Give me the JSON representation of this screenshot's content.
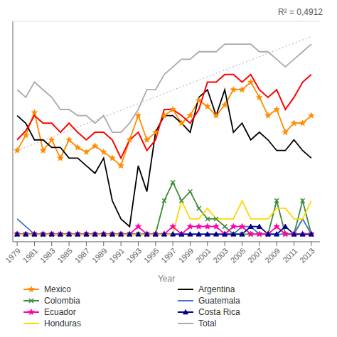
{
  "chart_data": {
    "type": "line",
    "x_label": "Year",
    "annotation": "R² = 0,4912",
    "x": [
      1979,
      1980,
      1981,
      1982,
      1983,
      1984,
      1985,
      1986,
      1987,
      1988,
      1989,
      1990,
      1991,
      1992,
      1993,
      1994,
      1995,
      1996,
      1997,
      1998,
      1999,
      2000,
      2001,
      2002,
      2003,
      2004,
      2005,
      2006,
      2007,
      2008,
      2009,
      2010,
      2011,
      2012,
      2013
    ],
    "series": [
      {
        "name": "Mexico",
        "color": "#FF8C00",
        "marker": "star",
        "values": [
          55,
          65,
          80,
          55,
          62,
          50,
          62,
          57,
          54,
          58,
          54,
          50,
          45,
          62,
          78,
          62,
          67,
          78,
          82,
          73,
          78,
          88,
          84,
          78,
          85,
          95,
          95,
          100,
          90,
          78,
          82,
          67,
          73,
          73,
          78
        ]
      },
      {
        "name": "Argentina",
        "color": "#000000",
        "values": [
          78,
          73,
          62,
          62,
          57,
          57,
          50,
          50,
          45,
          40,
          50,
          22,
          10,
          5,
          45,
          28,
          67,
          78,
          78,
          73,
          67,
          90,
          95,
          78,
          95,
          67,
          73,
          62,
          67,
          62,
          55,
          55,
          62,
          55,
          50
        ]
      },
      {
        "name": "Colombia",
        "color": "#3A8C3A",
        "marker": "x",
        "values": [
          0,
          0,
          0,
          0,
          0,
          0,
          0,
          0,
          0,
          0,
          0,
          0,
          0,
          0,
          0,
          0,
          0,
          22,
          34,
          22,
          28,
          17,
          10,
          10,
          5,
          0,
          0,
          0,
          0,
          0,
          22,
          0,
          0,
          22,
          0
        ]
      },
      {
        "name": "Guatemala",
        "color": "#4472C4",
        "values": [
          10,
          5,
          0,
          0,
          0,
          0,
          0,
          0,
          0,
          0,
          0,
          0,
          0,
          0,
          0,
          0,
          0,
          0,
          0,
          0,
          0,
          0,
          0,
          0,
          0,
          0,
          5,
          5,
          0,
          0,
          0,
          0,
          0,
          10,
          0
        ]
      },
      {
        "name": "Ecuador",
        "color": "#FF00AA",
        "marker": "star",
        "values": [
          0,
          0,
          0,
          0,
          0,
          0,
          0,
          0,
          0,
          0,
          0,
          0,
          0,
          0,
          5,
          0,
          0,
          0,
          5,
          0,
          5,
          5,
          5,
          5,
          0,
          5,
          5,
          0,
          0,
          0,
          5,
          0,
          0,
          0,
          0
        ]
      },
      {
        "name": "Costa Rica",
        "color": "#00008B",
        "marker": "triangle",
        "values": [
          0,
          0,
          0,
          0,
          0,
          0,
          0,
          0,
          0,
          0,
          0,
          0,
          0,
          0,
          0,
          0,
          0,
          0,
          0,
          0,
          0,
          0,
          0,
          0,
          0,
          0,
          0,
          5,
          5,
          0,
          0,
          5,
          0,
          0,
          0
        ]
      },
      {
        "name": "Honduras",
        "color": "#FFD700",
        "values": [
          0,
          0,
          0,
          0,
          0,
          0,
          0,
          0,
          0,
          0,
          0,
          0,
          0,
          0,
          0,
          0,
          0,
          0,
          0,
          22,
          10,
          10,
          17,
          10,
          10,
          10,
          22,
          10,
          10,
          10,
          17,
          17,
          10,
          10,
          22
        ]
      },
      {
        "name": "Total",
        "color": "#AAAAAA",
        "values": [
          95,
          90,
          100,
          95,
          90,
          82,
          82,
          78,
          78,
          73,
          78,
          67,
          67,
          73,
          82,
          95,
          95,
          105,
          110,
          115,
          115,
          120,
          120,
          120,
          125,
          125,
          125,
          125,
          120,
          120,
          115,
          110,
          115,
          120,
          125
        ]
      },
      {
        "color": "#FF0000",
        "values": [
          62,
          68,
          78,
          73,
          73,
          67,
          73,
          67,
          62,
          67,
          67,
          62,
          50,
          62,
          67,
          55,
          62,
          82,
          82,
          78,
          73,
          82,
          100,
          100,
          105,
          105,
          100,
          105,
          95,
          90,
          95,
          82,
          90,
          100,
          105
        ]
      }
    ],
    "trendline": {
      "x": [
        1979,
        2013
      ],
      "values": [
        55,
        130
      ],
      "color": "#AAAAAA",
      "line_style": "dotted"
    },
    "xlim": [
      1978.5,
      2014
    ],
    "ylim": [
      -5,
      140
    ],
    "xticks": [
      1979,
      1981,
      1983,
      1985,
      1987,
      1989,
      1991,
      1993,
      1995,
      1997,
      1999,
      2001,
      2003,
      2005,
      2007,
      2009,
      2011,
      2013
    ],
    "yticks": [
      0,
      30,
      60,
      90,
      120
    ],
    "grid": true,
    "legend": "bottom",
    "tick_labels": "x"
  }
}
